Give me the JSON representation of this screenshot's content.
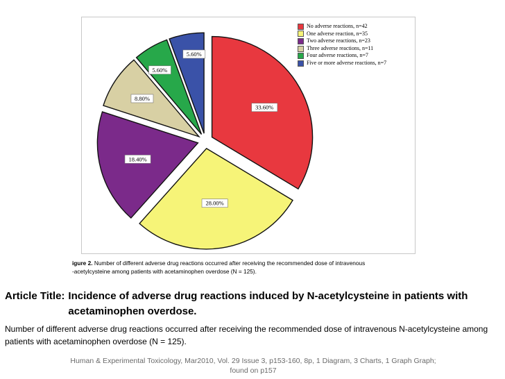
{
  "chart_data": {
    "type": "pie",
    "title": "",
    "slices": [
      {
        "label": "No adverse reactions, n=42",
        "value": 33.6,
        "display": "33.60%",
        "color": "#e8383f"
      },
      {
        "label": "One adverse reaction, n=35",
        "value": 28.0,
        "display": "28.00%",
        "color": "#f6f478"
      },
      {
        "label": "Two adverse reactions, n=23",
        "value": 18.4,
        "display": "18.40%",
        "color": "#7b2a8a"
      },
      {
        "label": "Three adverse reactions, n=11",
        "value": 8.8,
        "display": "8.80%",
        "color": "#d8d0a4"
      },
      {
        "label": "Four adverse reactions, n=7",
        "value": 5.6,
        "display": "5.60%",
        "color": "#27a84a"
      },
      {
        "label": "Five or more adverse reactions, n=7",
        "value": 5.6,
        "display": "5.60%",
        "color": "#3a52a8"
      }
    ],
    "legend_position": "top-right",
    "exploded": true
  },
  "figure_caption": {
    "label": "igure 2.",
    "text": "Number of different adverse drug reactions occurred after receiving the recommended dose of intravenous",
    "line2": "-acetylcysteine among patients with acetaminophen overdose (N = 125)."
  },
  "article": {
    "title_prefix": "Article Title:",
    "title": "Incidence of adverse drug reactions induced by N-acetylcysteine in patients with acetaminophen overdose."
  },
  "description": "Number of different adverse drug reactions occurred after receiving the recommended dose of intravenous N-acetylcysteine among patients with acetaminophen overdose (N = 125).",
  "citation": "Human & Experimental Toxicology, Mar2010, Vol. 29 Issue 3, p153-160, 8p, 1 Diagram, 3 Charts, 1 Graph Graph; found on p157"
}
